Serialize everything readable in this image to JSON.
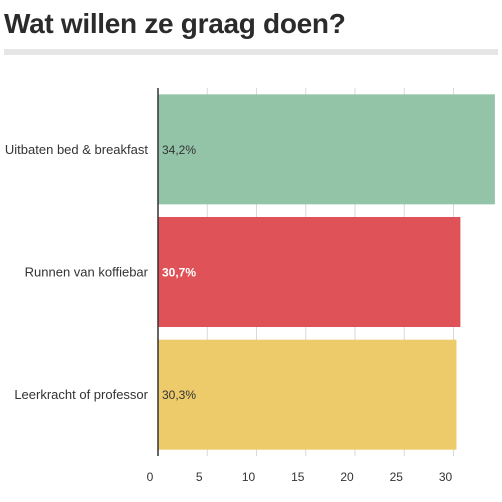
{
  "title": "Wat willen ze graag doen?",
  "chart_data": {
    "type": "bar",
    "orientation": "horizontal",
    "title": "Wat willen ze graag doen?",
    "xlabel": "",
    "ylabel": "",
    "categories": [
      "Uitbaten bed & breakfast",
      "Runnen van koffiebar",
      "Leerkracht of professor"
    ],
    "values": [
      34.2,
      30.7,
      30.3
    ],
    "value_labels": [
      "34,2%",
      "30,7%",
      "30,3%"
    ],
    "label_colors": [
      "#333333",
      "#ffffff",
      "#333333"
    ],
    "bar_colors": [
      "#93c4a8",
      "#df5358",
      "#edcb6b"
    ],
    "x_ticks": [
      "0",
      "5",
      "10",
      "15",
      "20",
      "25",
      "30"
    ],
    "xlim": [
      0,
      32
    ],
    "grid": true,
    "legend": "none"
  }
}
